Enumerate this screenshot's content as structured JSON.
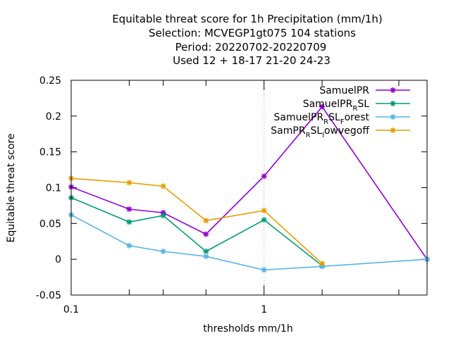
{
  "chart_data": {
    "type": "line",
    "title_lines": [
      "Equitable threat score  for 1h Precipitation (mm/1h)",
      "Selection: MCVEGP1gt075    104 stations",
      "Period: 20220702-20220709",
      "Used  12 + 18-17 21-20 24-23"
    ],
    "xlabel": "thresholds mm/1h",
    "ylabel": "Equitable threat score",
    "x_scale": "log",
    "xlim": [
      0.1,
      7
    ],
    "ylim": [
      -0.05,
      0.25
    ],
    "x_ticks": [
      {
        "value": 0.1,
        "label": "0.1"
      },
      {
        "value": 1,
        "label": "1"
      }
    ],
    "x_minor_ticks": [
      0.2,
      0.3,
      0.5,
      2,
      5
    ],
    "y_ticks": [
      {
        "value": -0.05,
        "label": "-0.05"
      },
      {
        "value": 0,
        "label": "0"
      },
      {
        "value": 0.05,
        "label": "0.05"
      },
      {
        "value": 0.1,
        "label": "0.1"
      },
      {
        "value": 0.15,
        "label": "0.15"
      },
      {
        "value": 0.2,
        "label": "0.2"
      },
      {
        "value": 0.25,
        "label": "0.25"
      }
    ],
    "grid": "x at major ticks (dotted)",
    "legend_position": "top-right",
    "series": [
      {
        "name": "SamuelPR",
        "legend": {
          "parts": [
            {
              "t": "SamuelPR"
            }
          ]
        },
        "color": "#9400d3",
        "x": [
          0.1,
          0.2,
          0.3,
          0.5,
          1,
          2,
          7
        ],
        "y": [
          0.101,
          0.07,
          0.065,
          0.035,
          0.116,
          0.213,
          0.0
        ]
      },
      {
        "name": "SamuelPR_RSL",
        "legend": {
          "parts": [
            {
              "t": "SamuelPR"
            },
            {
              "t": "R",
              "sub": true
            },
            {
              "t": "SL"
            }
          ]
        },
        "color": "#009e73",
        "x": [
          0.1,
          0.2,
          0.3,
          0.5,
          1,
          2
        ],
        "y": [
          0.086,
          0.052,
          0.061,
          0.011,
          0.055,
          -0.009
        ]
      },
      {
        "name": "SamuelPR_RSL_Forest",
        "legend": {
          "parts": [
            {
              "t": "SamuelPR"
            },
            {
              "t": "R",
              "sub": true
            },
            {
              "t": "SL"
            },
            {
              "t": "F",
              "sub": true
            },
            {
              "t": "orest"
            }
          ]
        },
        "color": "#56b4e9",
        "x": [
          0.1,
          0.2,
          0.3,
          0.5,
          1,
          2,
          7
        ],
        "y": [
          0.062,
          0.019,
          0.011,
          0.004,
          -0.015,
          -0.01,
          0.0
        ]
      },
      {
        "name": "SamPR_RSL_lowvegoff",
        "legend": {
          "parts": [
            {
              "t": "SamPR"
            },
            {
              "t": "R",
              "sub": true
            },
            {
              "t": "SL"
            },
            {
              "t": "l",
              "sub": true
            },
            {
              "t": "owvegoff"
            }
          ]
        },
        "color": "#e69f00",
        "x": [
          0.1,
          0.2,
          0.3,
          0.5,
          1,
          2
        ],
        "y": [
          0.113,
          0.107,
          0.102,
          0.054,
          0.068,
          -0.006
        ]
      }
    ]
  }
}
